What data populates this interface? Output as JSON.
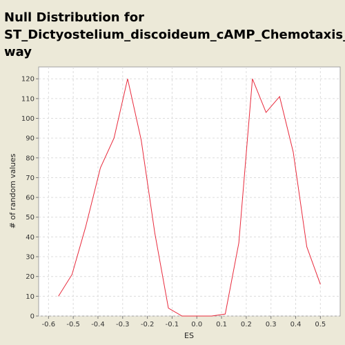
{
  "chart_data": {
    "type": "line",
    "title_lines": [
      "Null Distribution for",
      "ST_Dictyostelium_discoideum_cAMP_Chemotaxis_Path",
      "way"
    ],
    "xlabel": "ES",
    "ylabel": "# of random values",
    "xlim": [
      -0.64,
      0.58
    ],
    "ylim": [
      0,
      126
    ],
    "x_ticks": [
      "-0.6",
      "-0.5",
      "-0.4",
      "-0.3",
      "-0.2",
      "-0.1",
      "0.0",
      "0.1",
      "0.2",
      "0.3",
      "0.4",
      "0.5"
    ],
    "y_ticks": [
      "0",
      "10",
      "20",
      "30",
      "40",
      "50",
      "60",
      "70",
      "80",
      "90",
      "100",
      "110",
      "120"
    ],
    "grid": true,
    "series": [
      {
        "color": "#e8283a",
        "points": [
          {
            "x": -0.56,
            "y": 10
          },
          {
            "x": -0.505,
            "y": 21
          },
          {
            "x": -0.45,
            "y": 45
          },
          {
            "x": -0.39,
            "y": 75
          },
          {
            "x": -0.335,
            "y": 90
          },
          {
            "x": -0.28,
            "y": 120
          },
          {
            "x": -0.225,
            "y": 89
          },
          {
            "x": -0.17,
            "y": 42
          },
          {
            "x": -0.115,
            "y": 4
          },
          {
            "x": -0.06,
            "y": 0
          },
          {
            "x": 0.0,
            "y": 0
          },
          {
            "x": 0.06,
            "y": 0
          },
          {
            "x": 0.115,
            "y": 1
          },
          {
            "x": 0.17,
            "y": 37
          },
          {
            "x": 0.225,
            "y": 120
          },
          {
            "x": 0.28,
            "y": 103
          },
          {
            "x": 0.335,
            "y": 111
          },
          {
            "x": 0.39,
            "y": 83
          },
          {
            "x": 0.445,
            "y": 35
          },
          {
            "x": 0.5,
            "y": 16
          }
        ]
      }
    ]
  }
}
